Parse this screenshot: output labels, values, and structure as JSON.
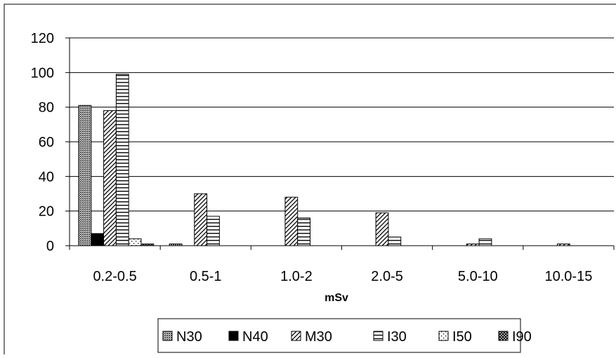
{
  "chart_data": {
    "type": "bar",
    "xlabel": "mSv",
    "ylabel": "",
    "title": "",
    "ylim": [
      0,
      120
    ],
    "yticks": [
      0,
      20,
      40,
      60,
      80,
      100,
      120
    ],
    "grid": true,
    "legend_position": "bottom",
    "categories": [
      "0.2-0.5",
      "0.5-1",
      "1.0-2",
      "2.0-5",
      "5.0-10",
      "10.0-15"
    ],
    "series": [
      {
        "name": "N30",
        "pattern": "dense-dots",
        "values": [
          81,
          1,
          0,
          0,
          0,
          0
        ]
      },
      {
        "name": "N40",
        "pattern": "solid-black",
        "values": [
          7,
          0,
          0,
          0,
          0,
          0
        ]
      },
      {
        "name": "M30",
        "pattern": "diagonal",
        "values": [
          78,
          30,
          28,
          19,
          1,
          1
        ]
      },
      {
        "name": "I30",
        "pattern": "horizontal",
        "values": [
          99,
          17,
          16,
          5,
          4,
          0
        ]
      },
      {
        "name": "I50",
        "pattern": "sparse-dots",
        "values": [
          4,
          0,
          0,
          0,
          0,
          0
        ]
      },
      {
        "name": "I90",
        "pattern": "crosshatch",
        "values": [
          1,
          0,
          0,
          0,
          0,
          0
        ]
      }
    ]
  }
}
